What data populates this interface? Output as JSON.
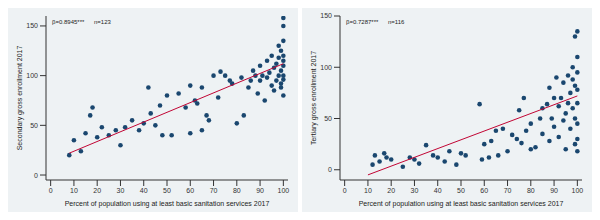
{
  "chart_data": [
    {
      "type": "scatter",
      "x_label": "Percent of population using at least basic sanitation services 2017",
      "y_label": "Secondary gross enrollment 2017",
      "annotations": [
        "β=0.8945***",
        "n=123"
      ],
      "xlim": [
        -2,
        102
      ],
      "xticks": [
        0,
        10,
        20,
        30,
        40,
        50,
        60,
        70,
        80,
        90,
        100
      ],
      "ylim": [
        -5,
        160
      ],
      "yticks": [
        0,
        50,
        100,
        150
      ],
      "grid": false,
      "series": [
        {
          "type": "scatter",
          "marker": "circle",
          "color": "#1a476f",
          "x": [
            8,
            10,
            13,
            15,
            17,
            18,
            20,
            22,
            25,
            28,
            30,
            32,
            35,
            38,
            40,
            42,
            43,
            45,
            47,
            48,
            50,
            52,
            55,
            58,
            60,
            60,
            62,
            63,
            65,
            65,
            67,
            68,
            70,
            72,
            73,
            75,
            77,
            78,
            80,
            82,
            83,
            85,
            86,
            87,
            88,
            89,
            90,
            90,
            91,
            92,
            93,
            93,
            94,
            95,
            95,
            96,
            96,
            97,
            97,
            98,
            98,
            98,
            99,
            99,
            99,
            99,
            100,
            100,
            100,
            100,
            100,
            100,
            100,
            100,
            100
          ],
          "values": [
            20,
            35,
            24,
            42,
            60,
            68,
            38,
            48,
            40,
            45,
            30,
            48,
            55,
            45,
            52,
            88,
            62,
            50,
            70,
            40,
            80,
            40,
            82,
            68,
            42,
            90,
            75,
            72,
            45,
            88,
            60,
            55,
            100,
            78,
            104,
            100,
            95,
            92,
            52,
            98,
            60,
            88,
            95,
            105,
            100,
            82,
            95,
            110,
            100,
            75,
            115,
            98,
            103,
            90,
            120,
            108,
            85,
            112,
            95,
            130,
            100,
            118,
            105,
            92,
            125,
            88,
            110,
            150,
            158,
            135,
            100,
            115,
            80,
            120,
            96
          ]
        },
        {
          "type": "line",
          "line_style": "solid",
          "color": "#c10534",
          "x": [
            8,
            100
          ],
          "values": [
            22,
            112
          ]
        }
      ]
    },
    {
      "type": "scatter",
      "x_label": "Percent of population using at least basic sanitation services 2017",
      "y_label": "Tertiary gross enrollment 2017",
      "annotations": [
        "β=0.7287***",
        "n=116"
      ],
      "xlim": [
        -2,
        102
      ],
      "xticks": [
        0,
        10,
        20,
        30,
        40,
        50,
        60,
        70,
        80,
        90,
        100
      ],
      "ylim": [
        -10,
        150
      ],
      "yticks": [
        0,
        50,
        100,
        150
      ],
      "grid": false,
      "series": [
        {
          "type": "scatter",
          "marker": "circle",
          "color": "#1a476f",
          "x": [
            12,
            13,
            15,
            17,
            18,
            20,
            25,
            28,
            30,
            32,
            35,
            38,
            40,
            43,
            45,
            48,
            50,
            52,
            58,
            59,
            60,
            62,
            63,
            65,
            66,
            68,
            70,
            72,
            74,
            75,
            76,
            77,
            78,
            80,
            80,
            82,
            84,
            85,
            85,
            87,
            88,
            88,
            89,
            90,
            90,
            91,
            92,
            92,
            93,
            94,
            94,
            95,
            95,
            96,
            96,
            97,
            97,
            98,
            98,
            98,
            99,
            99,
            99,
            99,
            100,
            100,
            100,
            100,
            100,
            100,
            100,
            100
          ],
          "values": [
            5,
            14,
            8,
            16,
            12,
            10,
            3,
            12,
            10,
            6,
            24,
            14,
            12,
            8,
            18,
            5,
            16,
            14,
            64,
            10,
            25,
            12,
            28,
            38,
            14,
            40,
            18,
            34,
            30,
            58,
            26,
            70,
            38,
            45,
            20,
            22,
            50,
            60,
            35,
            64,
            28,
            80,
            50,
            70,
            42,
            90,
            62,
            32,
            70,
            85,
            48,
            55,
            20,
            92,
            65,
            75,
            40,
            100,
            88,
            60,
            130,
            82,
            50,
            25,
            135,
            110,
            95,
            78,
            65,
            45,
            30,
            18
          ]
        },
        {
          "type": "line",
          "line_style": "solid",
          "color": "#c10534",
          "x": [
            10,
            100
          ],
          "values": [
            -5,
            72
          ]
        }
      ]
    }
  ]
}
